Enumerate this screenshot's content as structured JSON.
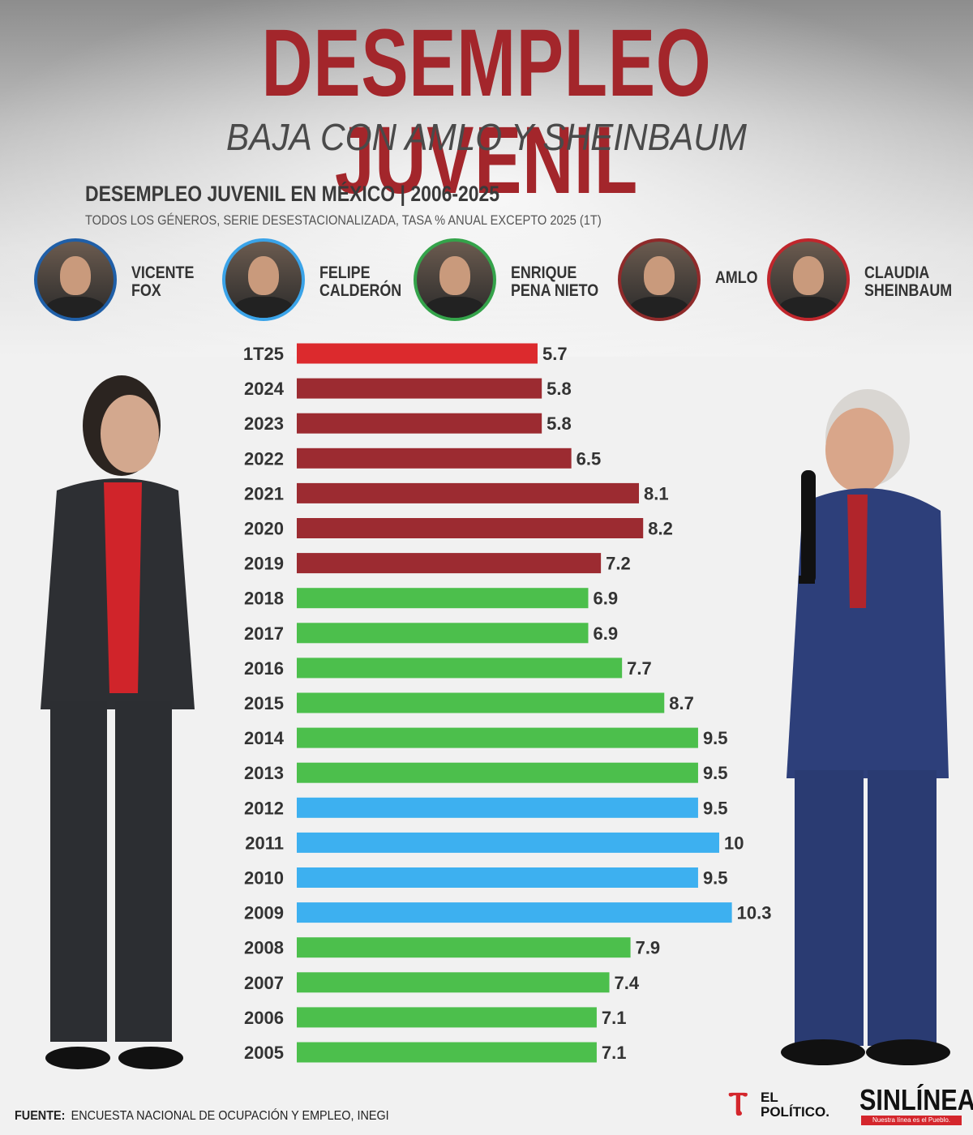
{
  "header": {
    "title": "DESEMPLEO JUVENIL",
    "subtitle": "BAJA CON AMLO Y SHEINBAUM",
    "chart_title": "DESEMPLEO JUVENIL EN MÉXICO | 2006-2025",
    "chart_subtitle": "TODOS LOS GÉNEROS, SERIE DESESTACIONALIZADA, TASA % ANUAL EXCEPTO 2025 (1T)"
  },
  "presidents": [
    {
      "name": "VICENTE\nFOX",
      "color": "#1f5fa8"
    },
    {
      "name": "FELIPE\nCALDERÓN",
      "color": "#3aa3e8"
    },
    {
      "name": "ENRIQUE\nPENA NIETO",
      "color": "#34a34a"
    },
    {
      "name": "AMLO",
      "color": "#8f2a2a"
    },
    {
      "name": "CLAUDIA\nSHEINBAUM",
      "color": "#c0262c"
    }
  ],
  "chart_data": {
    "type": "bar",
    "orientation": "horizontal",
    "title": "DESEMPLEO JUVENIL EN MÉXICO | 2006-2025",
    "categories": [
      "1T25",
      "2024",
      "2023",
      "2022",
      "2021",
      "2020",
      "2019",
      "2018",
      "2017",
      "2016",
      "2015",
      "2014",
      "2013",
      "2012",
      "2011",
      "2010",
      "2009",
      "2008",
      "2007",
      "2006",
      "2005"
    ],
    "values": [
      5.7,
      5.8,
      5.8,
      6.5,
      8.1,
      8.2,
      7.2,
      6.9,
      6.9,
      7.7,
      8.7,
      9.5,
      9.5,
      9.5,
      10,
      9.5,
      10.3,
      7.9,
      7.4,
      7.1,
      7.1
    ],
    "labels": [
      "5.7",
      "5.8",
      "5.8",
      "6.5",
      "8.1",
      "8.2",
      "7.2",
      "6.9",
      "6.9",
      "7.7",
      "8.7",
      "9.5",
      "9.5",
      "9.5",
      "10",
      "9.5",
      "10.3",
      "7.9",
      "7.4",
      "7.1",
      "7.1"
    ],
    "colors": [
      "#dc2a2d",
      "#9c2b31",
      "#9c2b31",
      "#9c2b31",
      "#9c2b31",
      "#9c2b31",
      "#9c2b31",
      "#4cbf4c",
      "#4cbf4c",
      "#4cbf4c",
      "#4cbf4c",
      "#4cbf4c",
      "#4cbf4c",
      "#3db0f0",
      "#3db0f0",
      "#3db0f0",
      "#3db0f0",
      "#4cbf4c",
      "#4cbf4c",
      "#4cbf4c",
      "#4cbf4c"
    ],
    "xlim": [
      0,
      10.3
    ],
    "grid": false,
    "legend": "top"
  },
  "footer": {
    "source_label": "FUENTE:",
    "source_text": "ENCUESTA NACIONAL DE OCUPACIÓN Y EMPLEO, INEGI"
  },
  "logos": {
    "elpolitico_line1": "EL",
    "elpolitico_line2": "POLÍTICO.",
    "sinlinea": "SINLÍNEA",
    "sinlinea_tag": "Nuestra línea es el Pueblo."
  }
}
